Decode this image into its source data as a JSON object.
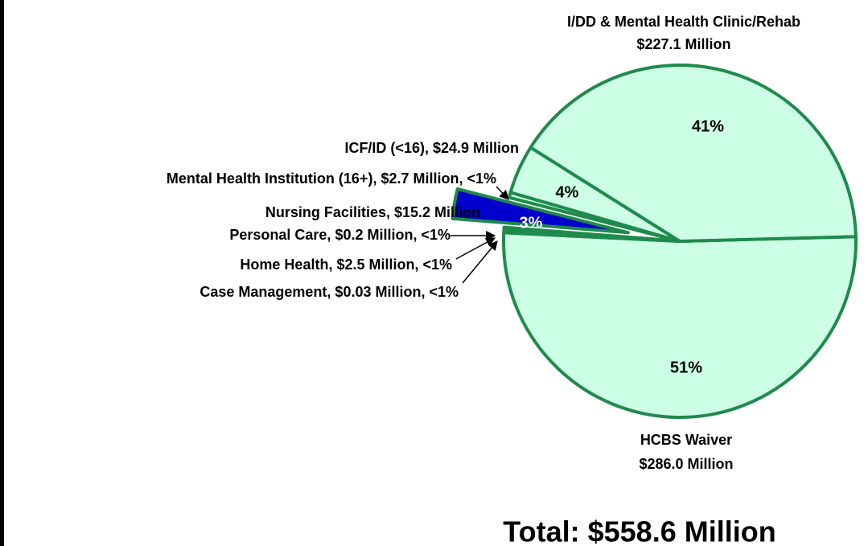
{
  "chart_data": {
    "type": "pie",
    "title": "Total: $558.6 Million",
    "categories": [
      "HCBS Waiver",
      "Case Management",
      "Home Health",
      "Personal Care",
      "Nursing Facilities",
      "Mental Health Institution (16+)",
      "ICF/ID (<16)",
      "I/DD & Mental Health Clinic/Rehab"
    ],
    "values": [
      286.0,
      0.03,
      2.5,
      0.2,
      15.2,
      2.7,
      24.9,
      227.1
    ],
    "labels": [
      [
        "HCBS Waiver",
        "$286.0 Million"
      ],
      [
        "Case Management, $0.03 Million, <1%"
      ],
      [
        "Home Health, $2.5 Million, <1%"
      ],
      [
        "Personal Care, $0.2 Million, <1%"
      ],
      [
        "Nursing Facilities, $15.2 Million"
      ],
      [
        "Mental Health Institution (16+), $2.7 Million, <1%"
      ],
      [
        "ICF/ID (<16), $24.9 Million"
      ],
      [
        "I/DD & Mental Health Clinic/Rehab",
        "$227.1 Million"
      ]
    ],
    "percent_labels": [
      "51%",
      null,
      null,
      null,
      "3%",
      null,
      "4%",
      "41%"
    ],
    "colors": [
      "#ccffe5",
      "#1f8a4c",
      "#1f8a4c",
      "#1f8a4c",
      "#0000cc",
      "#ccffe5",
      "#ccffe5",
      "#ccffe5"
    ],
    "edge_color": "#1f8a4c",
    "exploded": [
      false,
      false,
      false,
      false,
      true,
      false,
      false,
      false
    ]
  }
}
